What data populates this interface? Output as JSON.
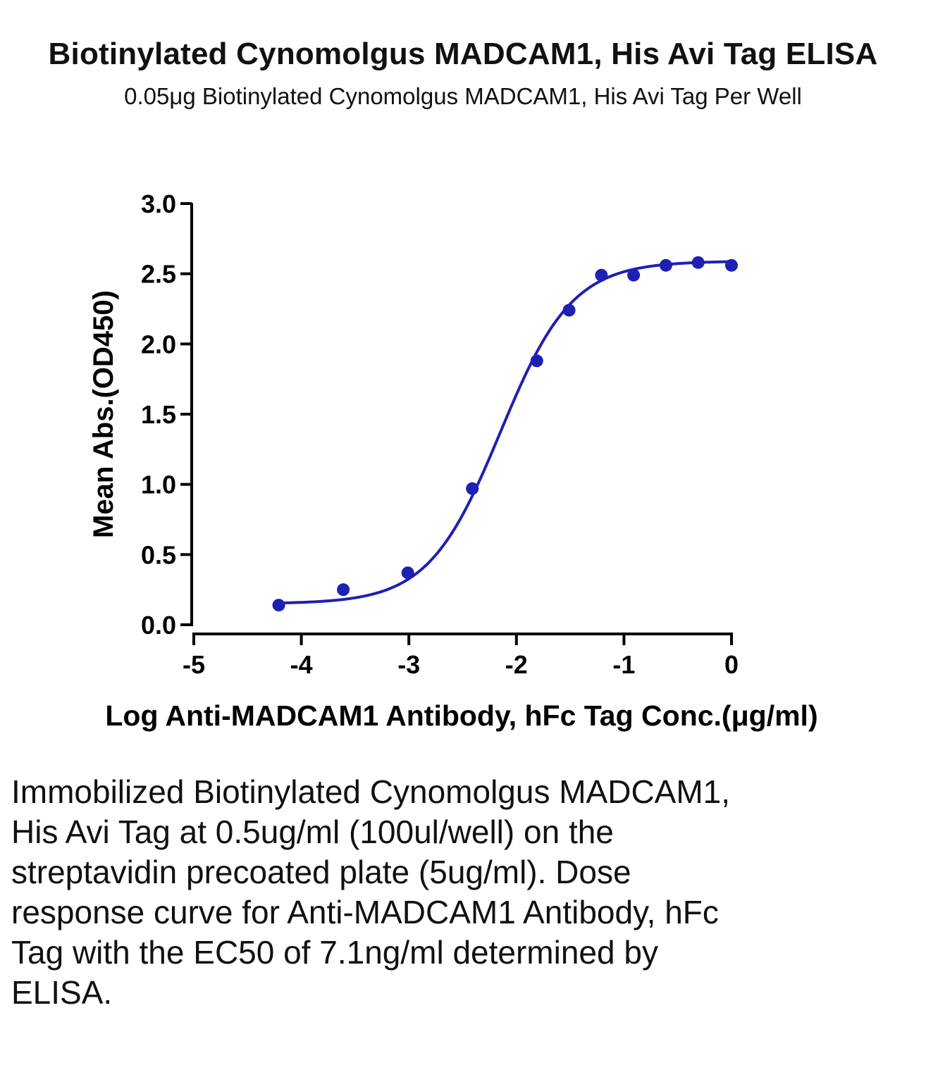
{
  "title": "Biotinylated Cynomolgus MADCAM1, His Avi Tag ELISA",
  "subtitle": "0.05μg Biotinylated Cynomolgus MADCAM1, His Avi Tag Per Well",
  "caption": "Immobilized Biotinylated Cynomolgus MADCAM1, His Avi Tag at 0.5ug/ml (100ul/well) on the streptavidin precoated plate (5ug/ml). Dose response curve for Anti-MADCAM1 Antibody, hFc Tag with the EC50 of 7.1ng/ml determined by ELISA.",
  "colors": {
    "series": "#1f1fb4",
    "axis": "#000000"
  },
  "chart_data": {
    "type": "scatter",
    "title": "Biotinylated Cynomolgus MADCAM1, His Avi Tag ELISA",
    "subtitle": "0.05μg Biotinylated Cynomolgus MADCAM1, His Avi Tag Per Well",
    "xlabel": "Log Anti-MADCAM1 Antibody, hFc Tag Conc.(μg/ml)",
    "ylabel": "Mean Abs.(OD450)",
    "xlim": [
      -5,
      0
    ],
    "ylim": [
      0,
      3.0
    ],
    "x_ticks": [
      -5,
      -4,
      -3,
      -2,
      -1,
      0
    ],
    "x_tick_labels": [
      "-5",
      "-4",
      "-3",
      "-2",
      "-1",
      "0"
    ],
    "y_ticks": [
      0,
      0.5,
      1.0,
      1.5,
      2.0,
      2.5,
      3.0
    ],
    "y_tick_labels": [
      "0.0",
      "0.5",
      "1.0",
      "1.5",
      "2.0",
      "2.5",
      "3.0"
    ],
    "grid": false,
    "legend": "none",
    "series": [
      {
        "x": [
          -4.21,
          -3.61,
          -3.01,
          -2.41,
          -1.81,
          -1.51,
          -1.21,
          -0.91,
          -0.61,
          -0.31,
          0.0
        ],
        "y": [
          0.14,
          0.25,
          0.37,
          0.97,
          1.88,
          2.24,
          2.49,
          2.49,
          2.56,
          2.58,
          2.56
        ],
        "fit": "4PL",
        "fit_params": {
          "bottom": 0.15,
          "top": 2.59,
          "log_ec50": -2.15,
          "hill": 1.3
        }
      }
    ]
  }
}
